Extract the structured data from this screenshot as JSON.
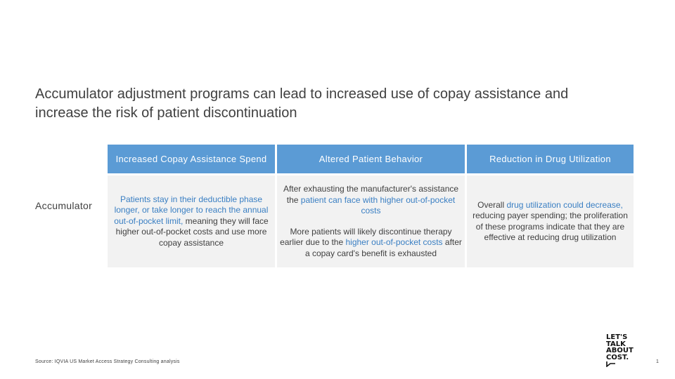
{
  "slide": {
    "title": "Accumulator adjustment programs can lead to increased use of copay assistance and increase the risk of patient discontinuation",
    "row_label": "Accumulator",
    "columns": [
      {
        "header": "Increased Copay Assistance Spend",
        "body": [
          [
            {
              "text": "Patients stay in their deductible phase longer, or take longer to reach the annual out-of-pocket limit,",
              "highlight": true
            },
            {
              "text": " meaning they will face higher out-of-pocket costs and use more copay assistance",
              "highlight": false
            }
          ]
        ]
      },
      {
        "header": "Altered Patient Behavior",
        "body": [
          [
            {
              "text": "After exhausting the manufacturer's assistance the ",
              "highlight": false
            },
            {
              "text": "patient can face with higher out-of-pocket costs",
              "highlight": true
            }
          ],
          [
            {
              "text": "More patients will likely discontinue therapy earlier due to the ",
              "highlight": false
            },
            {
              "text": "higher out-of-pocket costs",
              "highlight": true
            },
            {
              "text": " after a copay card's benefit is exhausted",
              "highlight": false
            }
          ]
        ]
      },
      {
        "header": "Reduction in Drug Utilization",
        "body": [
          [
            {
              "text": "Overall ",
              "highlight": false
            },
            {
              "text": "drug utilization could decrease,",
              "highlight": true
            },
            {
              "text": " reducing payer spending; the proliferation of these programs indicate that they are effective at reducing drug utilization",
              "highlight": false
            }
          ]
        ]
      }
    ],
    "source": "Source: IQVIA US Market Access Strategy Consulting analysis",
    "logo_lines": [
      "LET'S",
      "TALK",
      "ABOUT",
      "COST."
    ],
    "page_number": "1",
    "colors": {
      "header_bg": "#5b9bd5",
      "cell_bg": "#f2f2f2",
      "highlight_text": "#3a7fc3",
      "body_text": "#404040"
    }
  }
}
